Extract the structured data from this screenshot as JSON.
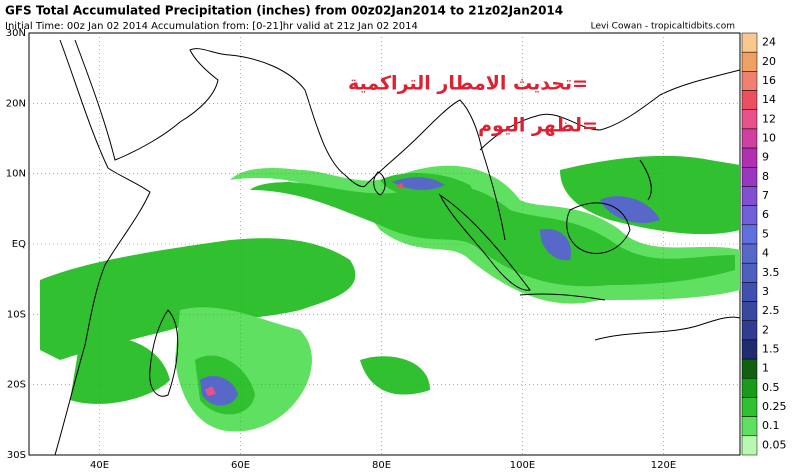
{
  "header": {
    "title": "GFS Total Accumulated Precipitation (inches) from 00z02Jan2014 to 21z02Jan2014",
    "subtitle": "Initial Time: 00z Jan 02 2014 Accumulation from: [0-21]hr valid at 21z Jan 02 2014",
    "credit": "Levi Cowan - tropicaltidbits.com"
  },
  "annotation": {
    "lines": [
      "=تحديث الامطار التراكمية",
      "=لظهر اليوم"
    ]
  },
  "map": {
    "lat_labels": [
      "30N",
      "20N",
      "10N",
      "EQ",
      "10S",
      "20S",
      "30S"
    ],
    "lon_labels": [
      "40E",
      "60E",
      "80E",
      "100E",
      "120E"
    ]
  },
  "colorbar": {
    "labels": [
      "24",
      "20",
      "16",
      "14",
      "12",
      "10",
      "9",
      "8",
      "7",
      "6",
      "5",
      "4",
      "3.5",
      "3",
      "2.5",
      "2",
      "1.5",
      "1",
      "0.5",
      "0.25",
      "0.1",
      "0.05"
    ],
    "colors": [
      "#f8c890",
      "#f0a060",
      "#f08070",
      "#ec5060",
      "#e8508c",
      "#d040a0",
      "#b030b0",
      "#9838c0",
      "#8050d0",
      "#7060d8",
      "#6070e0",
      "#5868c8",
      "#4c60c0",
      "#4050b0",
      "#3848a0",
      "#303c90",
      "#202c70",
      "#106010",
      "#1a9a1a",
      "#30c030",
      "#60e060",
      "#b8f8b0"
    ]
  }
}
